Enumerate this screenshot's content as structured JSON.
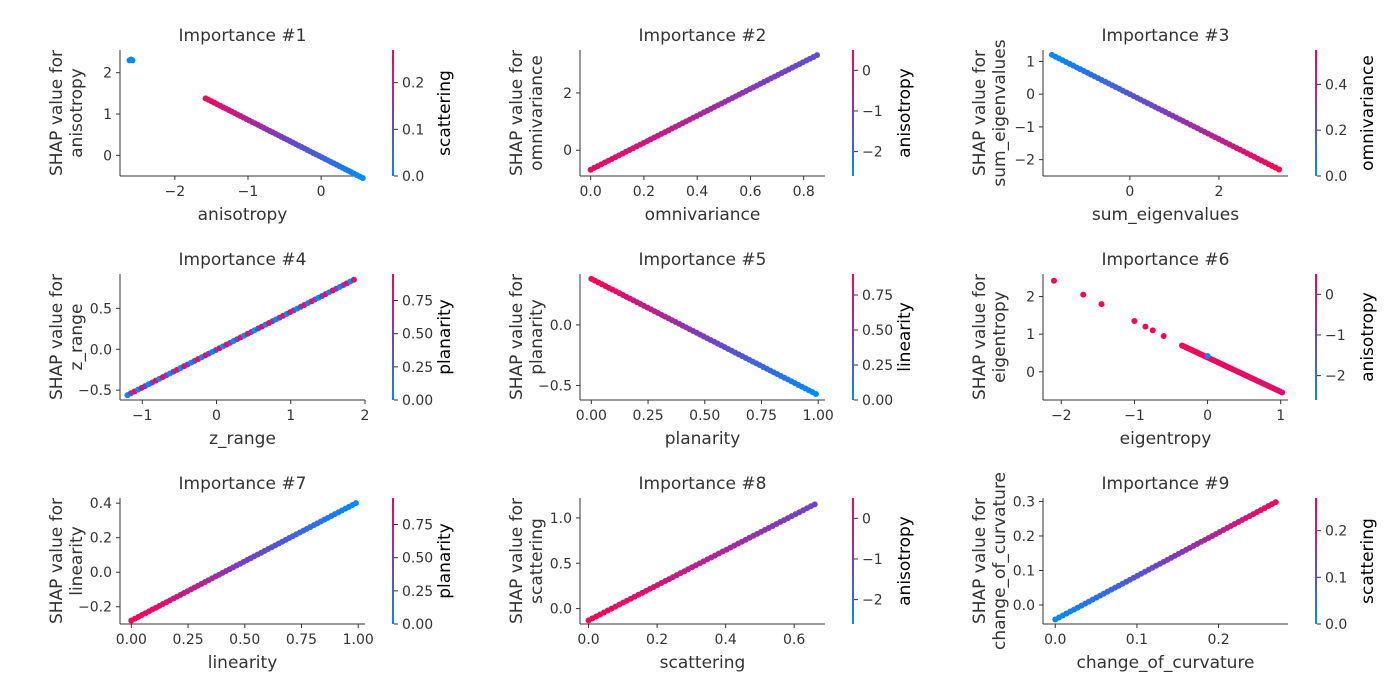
{
  "colors": {
    "low": "#008bfb",
    "mid": "#7a3ebd",
    "high": "#ff0052",
    "text": "#333333"
  },
  "chart_data": [
    {
      "type": "scatter",
      "title": "Importance #1",
      "xlabel": "anisotropy",
      "ylabel": [
        "SHAP value for",
        "anisotropy"
      ],
      "xlim": [
        -2.75,
        0.6
      ],
      "ylim": [
        -0.5,
        2.55
      ],
      "xticks": [
        -2,
        -1,
        0
      ],
      "xtick_labels": [
        "−2",
        "−1",
        "0"
      ],
      "yticks": [
        0,
        1,
        2
      ],
      "ytick_labels": [
        "0",
        "1",
        "2"
      ],
      "color_feature": "scattering",
      "color_range": [
        0.0,
        0.27
      ],
      "cticks": [
        0.0,
        0.1,
        0.2
      ],
      "ctick_labels": [
        "0.0",
        "0.1",
        "0.2"
      ],
      "points": [
        [
          -2.62,
          2.3,
          0.0
        ],
        [
          -2.58,
          2.3,
          0.0
        ],
        [
          -2.6,
          2.32,
          0.0
        ]
      ],
      "line": {
        "x0": -1.58,
        "x1": 0.57,
        "y0": 1.38,
        "y1": -0.55,
        "c0": 0.26,
        "c1": 0.0,
        "n": 55
      }
    },
    {
      "type": "scatter",
      "title": "Importance #2",
      "xlabel": "omnivariance",
      "ylabel": [
        "SHAP value for",
        "omnivariance"
      ],
      "xlim": [
        -0.04,
        0.88
      ],
      "ylim": [
        -0.9,
        3.5
      ],
      "xticks": [
        0,
        0.2,
        0.4,
        0.6,
        0.8
      ],
      "xtick_labels": [
        "0.0",
        "0.2",
        "0.4",
        "0.6",
        "0.8"
      ],
      "yticks": [
        0,
        2
      ],
      "ytick_labels": [
        "0",
        "2"
      ],
      "color_feature": "anisotropy",
      "color_range": [
        -2.6,
        0.5
      ],
      "cticks": [
        -2,
        -1,
        0
      ],
      "ctick_labels": [
        "−2",
        "−1",
        "0"
      ],
      "points": [],
      "line": {
        "x0": 0.0,
        "x1": 0.85,
        "y0": -0.68,
        "y1": 3.32,
        "c0": 0.3,
        "c1": -1.4,
        "n": 65
      }
    },
    {
      "type": "scatter",
      "title": "Importance #3",
      "xlabel": "sum_eigenvalues",
      "ylabel": [
        "SHAP value for",
        "sum_eigenvalues"
      ],
      "xlim": [
        -1.95,
        3.55
      ],
      "ylim": [
        -2.5,
        1.35
      ],
      "xticks": [
        0,
        2
      ],
      "xtick_labels": [
        "0",
        "2"
      ],
      "yticks": [
        -2,
        -1,
        0,
        1
      ],
      "ytick_labels": [
        "−2",
        "−1",
        "0",
        "1"
      ],
      "color_feature": "omnivariance",
      "color_range": [
        0.0,
        0.55
      ],
      "cticks": [
        0.0,
        0.2,
        0.4
      ],
      "ctick_labels": [
        "0.0",
        "0.2",
        "0.4"
      ],
      "points": [],
      "line": {
        "x0": -1.75,
        "x1": 3.35,
        "y0": 1.2,
        "y1": -2.3,
        "c0": 0.0,
        "c1": 0.55,
        "n": 65
      }
    },
    {
      "type": "scatter",
      "title": "Importance #4",
      "xlabel": "z_range",
      "ylabel": [
        "SHAP value for",
        "z_range"
      ],
      "xlim": [
        -1.3,
        2.0
      ],
      "ylim": [
        -0.62,
        0.92
      ],
      "xticks": [
        -1,
        0,
        1,
        2
      ],
      "xtick_labels": [
        "−1",
        "0",
        "1",
        "2"
      ],
      "yticks": [
        -0.5,
        0,
        0.5
      ],
      "ytick_labels": [
        "−0.5",
        "0.0",
        "0.5"
      ],
      "color_feature": "planarity",
      "color_range": [
        0.0,
        0.95
      ],
      "cticks": [
        0,
        0.25,
        0.5,
        0.75
      ],
      "ctick_labels": [
        "0.00",
        "0.25",
        "0.50",
        "0.75"
      ],
      "points": [],
      "line": {
        "x0": -1.2,
        "x1": 1.85,
        "y0": -0.56,
        "y1": 0.85,
        "c0": 0.5,
        "c1": 0.5,
        "n": 65,
        "alternate": true
      }
    },
    {
      "type": "scatter",
      "title": "Importance #5",
      "xlabel": "planarity",
      "ylabel": [
        "SHAP value for",
        "planarity"
      ],
      "xlim": [
        -0.05,
        1.03
      ],
      "ylim": [
        -0.62,
        0.42
      ],
      "xticks": [
        0,
        0.25,
        0.5,
        0.75,
        1.0
      ],
      "xtick_labels": [
        "0.00",
        "0.25",
        "0.50",
        "0.75",
        "1.00"
      ],
      "yticks": [
        -0.5,
        0.0
      ],
      "ytick_labels": [
        "−0.5",
        "0.0"
      ],
      "color_feature": "linearity",
      "color_range": [
        0.0,
        0.9
      ],
      "cticks": [
        0,
        0.25,
        0.5,
        0.75
      ],
      "ctick_labels": [
        "0.00",
        "0.25",
        "0.50",
        "0.75"
      ],
      "points": [],
      "line": {
        "x0": 0.0,
        "x1": 0.99,
        "y0": 0.38,
        "y1": -0.57,
        "c0": 0.9,
        "c1": 0.0,
        "n": 65
      }
    },
    {
      "type": "scatter",
      "title": "Importance #6",
      "xlabel": "eigentropy",
      "ylabel": [
        "SHAP value for",
        "eigentropy"
      ],
      "xlim": [
        -2.25,
        1.1
      ],
      "ylim": [
        -0.75,
        2.6
      ],
      "xticks": [
        -2,
        -1,
        0,
        1
      ],
      "xtick_labels": [
        "−2",
        "−1",
        "0",
        "1"
      ],
      "yticks": [
        0,
        1,
        2
      ],
      "ytick_labels": [
        "0",
        "1",
        "2"
      ],
      "color_feature": "anisotropy",
      "color_range": [
        -2.6,
        0.5
      ],
      "cticks": [
        -2,
        -1,
        0
      ],
      "ctick_labels": [
        "−2",
        "−1",
        "0"
      ],
      "points": [
        [
          -2.1,
          2.42,
          0.45
        ],
        [
          -1.7,
          2.05,
          0.45
        ],
        [
          -1.45,
          1.8,
          0.45
        ],
        [
          -1.0,
          1.35,
          0.45
        ],
        [
          -0.85,
          1.2,
          0.45
        ],
        [
          -0.75,
          1.1,
          0.45
        ],
        [
          -0.6,
          0.95,
          0.45
        ],
        [
          0.0,
          0.42,
          -2.5
        ]
      ],
      "line": {
        "x0": -0.35,
        "x1": 1.02,
        "y0": 0.7,
        "y1": -0.55,
        "c0": 0.45,
        "c1": 0.1,
        "n": 50
      }
    },
    {
      "type": "scatter",
      "title": "Importance #7",
      "xlabel": "linearity",
      "ylabel": [
        "SHAP value for",
        "linearity"
      ],
      "xlim": [
        -0.05,
        1.03
      ],
      "ylim": [
        -0.3,
        0.43
      ],
      "xticks": [
        0,
        0.25,
        0.5,
        0.75,
        1.0
      ],
      "xtick_labels": [
        "0.00",
        "0.25",
        "0.50",
        "0.75",
        "1.00"
      ],
      "yticks": [
        -0.2,
        0.0,
        0.2,
        0.4
      ],
      "ytick_labels": [
        "−0.2",
        "0.0",
        "0.2",
        "0.4"
      ],
      "color_feature": "planarity",
      "color_range": [
        0.0,
        0.95
      ],
      "cticks": [
        0,
        0.25,
        0.5,
        0.75
      ],
      "ctick_labels": [
        "0.00",
        "0.25",
        "0.50",
        "0.75"
      ],
      "points": [],
      "line": {
        "x0": 0.0,
        "x1": 0.99,
        "y0": -0.28,
        "y1": 0.4,
        "c0": 0.95,
        "c1": 0.0,
        "n": 65
      }
    },
    {
      "type": "scatter",
      "title": "Importance #8",
      "xlabel": "scattering",
      "ylabel": [
        "SHAP value for",
        "scattering"
      ],
      "xlim": [
        -0.025,
        0.69
      ],
      "ylim": [
        -0.17,
        1.22
      ],
      "xticks": [
        0,
        0.2,
        0.4,
        0.6
      ],
      "xtick_labels": [
        "0.0",
        "0.2",
        "0.4",
        "0.6"
      ],
      "yticks": [
        0,
        0.5,
        1.0
      ],
      "ytick_labels": [
        "0.0",
        "0.5",
        "1.0"
      ],
      "color_feature": "anisotropy",
      "color_range": [
        -2.6,
        0.5
      ],
      "cticks": [
        -2,
        -1,
        0
      ],
      "ctick_labels": [
        "−2",
        "−1",
        "0"
      ],
      "points": [],
      "line": {
        "x0": 0.0,
        "x1": 0.66,
        "y0": -0.13,
        "y1": 1.15,
        "c0": 0.45,
        "c1": -1.2,
        "n": 60
      }
    },
    {
      "type": "scatter",
      "title": "Importance #9",
      "xlabel": "change_of_curvature",
      "ylabel": [
        "SHAP value for",
        "change_of_curvature"
      ],
      "xlim": [
        -0.015,
        0.285
      ],
      "ylim": [
        -0.055,
        0.31
      ],
      "xticks": [
        0,
        0.1,
        0.2
      ],
      "xtick_labels": [
        "0.0",
        "0.1",
        "0.2"
      ],
      "yticks": [
        0,
        0.1,
        0.2,
        0.3
      ],
      "ytick_labels": [
        "0.0",
        "0.1",
        "0.2",
        "0.3"
      ],
      "color_feature": "scattering",
      "color_range": [
        0.0,
        0.27
      ],
      "cticks": [
        0.0,
        0.1,
        0.2
      ],
      "ctick_labels": [
        "0.0",
        "0.1",
        "0.2"
      ],
      "points": [],
      "line": {
        "x0": 0.0,
        "x1": 0.27,
        "y0": -0.042,
        "y1": 0.298,
        "c0": 0.0,
        "c1": 0.26,
        "n": 60
      }
    }
  ]
}
